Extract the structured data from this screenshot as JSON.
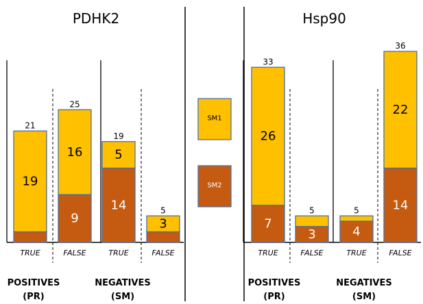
{
  "chart_data": [
    {
      "type": "bar",
      "stacked": true,
      "title": "PDHK2",
      "categories": [
        "TRUE",
        "FALSE",
        "TRUE",
        "FALSE"
      ],
      "groups": [
        {
          "label_line1": "POSITIVES",
          "label_line2": "(PR)"
        },
        {
          "label_line1": "NEGATIVES",
          "label_line2": "(SM)"
        }
      ],
      "series": [
        {
          "name": "SM2",
          "values": [
            2,
            9,
            14,
            2
          ],
          "labels": [
            "",
            "9",
            "14",
            ""
          ]
        },
        {
          "name": "SM1",
          "values": [
            19,
            16,
            5,
            3
          ],
          "labels": [
            "19",
            "16",
            "5",
            "3"
          ]
        }
      ],
      "totals": [
        "21",
        "25",
        "19",
        "5"
      ],
      "ylim": [
        0,
        36
      ],
      "grid": false
    },
    {
      "type": "bar",
      "stacked": true,
      "title": "Hsp90",
      "categories": [
        "TRUE",
        "FALSE",
        "TRUE",
        "FALSE"
      ],
      "groups": [
        {
          "label_line1": "POSITIVES",
          "label_line2": "(PR)"
        },
        {
          "label_line1": "NEGATIVES",
          "label_line2": "(SM)"
        }
      ],
      "series": [
        {
          "name": "SM2",
          "values": [
            7,
            3,
            4,
            14
          ],
          "labels": [
            "7",
            "3",
            "4",
            "14"
          ]
        },
        {
          "name": "SM1",
          "values": [
            26,
            2,
            1,
            22
          ],
          "labels": [
            "26",
            "",
            "",
            "22"
          ]
        }
      ],
      "totals": [
        "33",
        "5",
        "5",
        "36"
      ],
      "ylim": [
        0,
        36
      ],
      "grid": false
    }
  ],
  "legend": {
    "placement": "center",
    "items": [
      {
        "label": "SM1",
        "color": "#FFC000"
      },
      {
        "label": "SM2",
        "color": "#C55A11"
      }
    ]
  },
  "colors": {
    "sm1_fill": "#FFC000",
    "sm2_fill": "#C55A11",
    "bar_border": "#4A6FA5"
  }
}
